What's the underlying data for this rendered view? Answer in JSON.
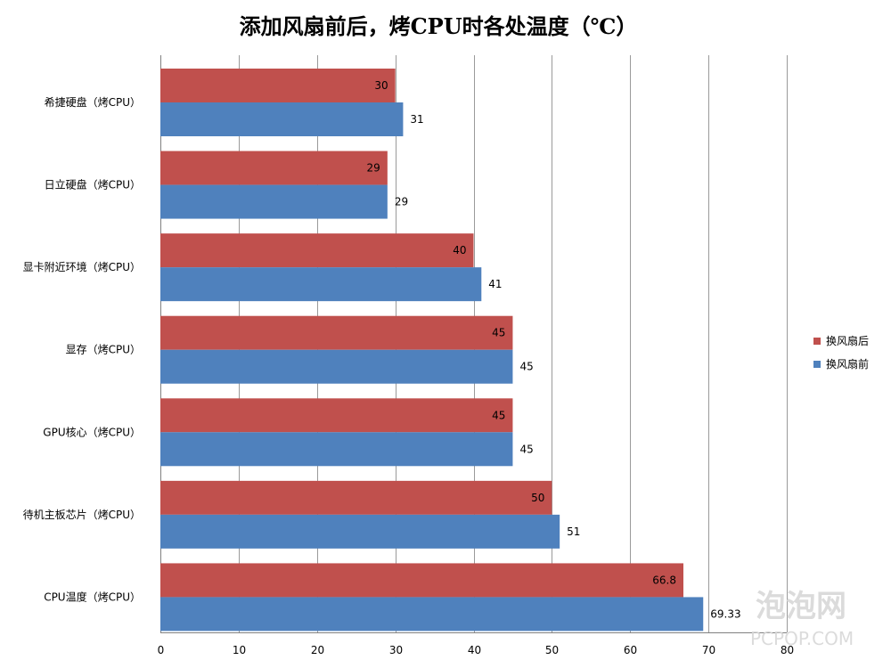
{
  "chart_data": {
    "type": "bar",
    "orientation": "horizontal",
    "title": "添加风扇前后，烤CPU时各处温度（℃）",
    "categories": [
      "希捷硬盘（烤CPU）",
      "日立硬盘（烤CPU）",
      "显卡附近环境（烤CPU）",
      "显存（烤CPU）",
      "GPU核心（烤CPU）",
      "待机主板芯片（烤CPU）",
      "CPU温度（烤CPU）"
    ],
    "series": [
      {
        "name": "换风扇后",
        "color": "#c0504d",
        "values": [
          30,
          29,
          40,
          45,
          45,
          50,
          66.8
        ]
      },
      {
        "name": "换风扇前",
        "color": "#4f81bd",
        "values": [
          31,
          29,
          41,
          45,
          45,
          51,
          69.33
        ]
      }
    ],
    "xlim": [
      0,
      80
    ],
    "xticks": [
      "0",
      "10",
      "20",
      "30",
      "40",
      "50",
      "60",
      "70",
      "80"
    ],
    "grid": true,
    "legend_position": "right"
  },
  "watermark": {
    "text_cn": "泡泡网",
    "text_en": "PCPOP.COM"
  }
}
